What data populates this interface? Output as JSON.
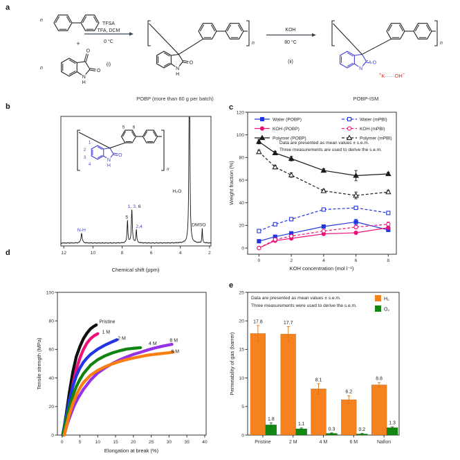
{
  "panels": {
    "a": "a",
    "b": "b",
    "c": "c",
    "d": "d",
    "e": "e"
  },
  "panel_a": {
    "n": "n",
    "plus": "+",
    "step1": {
      "reagent1": "TFSA",
      "reagent2": "TFA, DCM",
      "temp": "0 °C",
      "label": "(i)"
    },
    "step2": {
      "reagent1": "KOH",
      "temp": "80 °C",
      "label": "(ii)"
    },
    "atoms": {
      "o": "O",
      "n": "N",
      "h": "H"
    },
    "ion": {
      "plus": "+",
      "cation": "K",
      "dots": "·······",
      "anion": "OH",
      "minus": "−"
    },
    "colors": {
      "highlight_blue": "#4543d2",
      "ion_red": "#e42821",
      "bond_black": "#222222",
      "arrow": "#3c4650"
    }
  },
  "chart_data": [
    {
      "panel": "b",
      "type": "line",
      "subtype": "nmr-spectrum",
      "title": "POBP (more than 60 g per batch)",
      "xlabel": "Chemical shift (ppm)",
      "xlim": [
        12.2,
        1.9
      ],
      "x_ticks": [
        12,
        10,
        8,
        6,
        4,
        2
      ],
      "peaks": [
        {
          "ppm": 10.78,
          "rel_height": 0.075,
          "width": 0.05,
          "label": "N-H",
          "label_color": "#4543d2",
          "label_dx": 0
        },
        {
          "ppm": 7.63,
          "rel_height": 0.175,
          "width": 0.035,
          "label": "5",
          "label_color": "#222222",
          "label_dx": -1
        },
        {
          "ppm": 7.33,
          "rel_height": 0.26,
          "width": 0.04,
          "label": "1, 3,",
          "label2": " 6",
          "label_color": "#4543d2",
          "label_dx": 3.5
        },
        {
          "ppm": 7.02,
          "rel_height": 0.1,
          "width": 0.035,
          "label": "2,4",
          "label_color": "#4543d2",
          "label_dx": 4
        },
        {
          "ppm": 3.38,
          "rel_height": 2.0,
          "width": 0.03,
          "label": "H₂O",
          "label_color": "#222222",
          "label_dx": -18
        },
        {
          "ppm": 2.5,
          "rel_height": 0.115,
          "width": 0.025,
          "label": "DMSO",
          "label_color": "#222222",
          "label_dx": -5
        }
      ],
      "inset_ring_numbers": [
        "1",
        "2",
        "3",
        "4",
        "5",
        "6"
      ],
      "inset_n": "n"
    },
    {
      "panel": "c",
      "type": "line",
      "title": "POBP-ISM",
      "xlabel": "KOH concentration (mol l⁻¹)",
      "ylabel": "Weight fraction (%)",
      "xlim": [
        -0.7,
        8.5
      ],
      "ylim": [
        -5.5,
        120
      ],
      "x_ticks": [
        0,
        2,
        4,
        6,
        8
      ],
      "y_ticks": [
        0,
        20,
        40,
        60,
        80,
        100,
        120
      ],
      "x": [
        0,
        1,
        2,
        4,
        6,
        8
      ],
      "series": [
        {
          "name": "Water (POBP)",
          "color": "#2135e0",
          "marker": "square",
          "filled": true,
          "dashed": false,
          "values": [
            6,
            10,
            13,
            19,
            23,
            16
          ],
          "err": [
            0.8,
            1,
            1,
            1.2,
            2.5,
            1
          ]
        },
        {
          "name": "KOH (POBP)",
          "color": "#ee1178",
          "marker": "circle",
          "filled": true,
          "dashed": false,
          "values": [
            0,
            6.5,
            8.5,
            12.5,
            13.5,
            18
          ],
          "err": [
            0.5,
            0.8,
            0.8,
            1,
            1,
            1.2
          ]
        },
        {
          "name": "Polymer (POBP)",
          "color": "#1a1a1a",
          "marker": "triangle",
          "filled": true,
          "dashed": false,
          "values": [
            94,
            84,
            79,
            68.5,
            64,
            65.5
          ],
          "err": [
            2,
            1.5,
            2,
            1.5,
            4.5,
            1.5
          ]
        },
        {
          "name": "Water (mPBI)",
          "color": "#2135e0",
          "marker": "square",
          "filled": false,
          "dashed": true,
          "values": [
            15,
            21,
            25.5,
            34,
            35.5,
            31
          ],
          "err": [
            1,
            1,
            1.5,
            1.2,
            1.5,
            1
          ]
        },
        {
          "name": "KOH (mPBI)",
          "color": "#ee1178",
          "marker": "circle",
          "filled": false,
          "dashed": true,
          "values": [
            0,
            7.5,
            10.5,
            15,
            18.5,
            21
          ],
          "err": [
            0.5,
            0.8,
            1,
            1,
            1.5,
            2
          ]
        },
        {
          "name": "Polymer (mPBI)",
          "color": "#1a1a1a",
          "marker": "triangle",
          "filled": false,
          "dashed": true,
          "values": [
            85,
            71.5,
            64.5,
            50.5,
            46.5,
            49.5
          ],
          "err": [
            1.5,
            1.5,
            2,
            1.5,
            3,
            1.5
          ]
        }
      ],
      "legend_layout": [
        [
          0,
          3
        ],
        [
          1,
          4
        ],
        [
          2,
          5
        ]
      ],
      "annotation": [
        "Data are presented as mean values ± s.e.m.",
        "Three measurements are used to derive the s.e.m."
      ]
    },
    {
      "panel": "d",
      "type": "line",
      "xlabel": "Elongation at break (%)",
      "ylabel": "Tensile strength (MPa)",
      "xlim": [
        -1.3,
        40.4
      ],
      "ylim": [
        0,
        100
      ],
      "x_ticks": [
        0,
        5,
        10,
        15,
        20,
        25,
        30,
        35,
        40
      ],
      "y_ticks": [
        0,
        20,
        40,
        60,
        80,
        100
      ],
      "series": [
        {
          "name": "Pristine",
          "color": "#101010",
          "label_at": [
            10.4,
            78.5
          ],
          "points": [
            [
              0.2,
              0
            ],
            [
              0.7,
              7
            ],
            [
              1.2,
              15
            ],
            [
              2,
              29
            ],
            [
              3,
              44
            ],
            [
              4,
              55
            ],
            [
              5,
              62
            ],
            [
              6,
              67.5
            ],
            [
              7,
              71.5
            ],
            [
              8,
              74.5
            ],
            [
              9,
              76.3
            ],
            [
              9.6,
              77.2
            ]
          ]
        },
        {
          "name": "1 M",
          "color": "#ee1178",
          "label_at": [
            11.2,
            71
          ],
          "points": [
            [
              0.5,
              0
            ],
            [
              1,
              7
            ],
            [
              2,
              21
            ],
            [
              3,
              35
            ],
            [
              4,
              46
            ],
            [
              5,
              54
            ],
            [
              6,
              60
            ],
            [
              7,
              64.5
            ],
            [
              8,
              67.5
            ],
            [
              9,
              69.6
            ],
            [
              10,
              71
            ]
          ]
        },
        {
          "name": "2 M",
          "color": "#2135e0",
          "label_at": [
            15.6,
            66.8
          ],
          "points": [
            [
              0.2,
              0
            ],
            [
              1,
              11
            ],
            [
              2,
              24
            ],
            [
              3,
              34
            ],
            [
              4,
              41.5
            ],
            [
              5,
              47
            ],
            [
              6,
              51
            ],
            [
              7,
              54
            ],
            [
              8,
              56.5
            ],
            [
              10,
              60.2
            ],
            [
              12,
              63
            ],
            [
              14,
              65.3
            ],
            [
              15.4,
              66.8
            ]
          ]
        },
        {
          "name": "4 M",
          "color": "#108312",
          "label_at": [
            24.3,
            63
          ],
          "points": [
            [
              0.3,
              0
            ],
            [
              1,
              9
            ],
            [
              2,
              19
            ],
            [
              3,
              27.5
            ],
            [
              4,
              34
            ],
            [
              5,
              39
            ],
            [
              6,
              43
            ],
            [
              8,
              49
            ],
            [
              10,
              52.8
            ],
            [
              12,
              55.5
            ],
            [
              14,
              57.5
            ],
            [
              16,
              59
            ],
            [
              18,
              60.2
            ],
            [
              20,
              60.8
            ],
            [
              22,
              61.2
            ]
          ]
        },
        {
          "name": "8 M",
          "color": "#9632e6",
          "label_at": [
            30.2,
            65.2
          ],
          "points": [
            [
              0.6,
              0
            ],
            [
              1.5,
              8
            ],
            [
              2.5,
              15
            ],
            [
              3.5,
              21
            ],
            [
              4.5,
              26
            ],
            [
              6,
              32
            ],
            [
              8,
              38.5
            ],
            [
              10,
              43.5
            ],
            [
              12,
              47
            ],
            [
              14,
              50
            ],
            [
              16,
              52.5
            ],
            [
              18,
              54.6
            ],
            [
              20,
              56.5
            ],
            [
              22,
              58
            ],
            [
              24,
              59.6
            ],
            [
              26,
              61
            ],
            [
              28,
              62.2
            ],
            [
              30,
              63.2
            ],
            [
              30.8,
              63.6
            ]
          ]
        },
        {
          "name": "6 M",
          "color": "#fa7e10",
          "label_at": [
            30.6,
            57.5
          ],
          "points": [
            [
              0.6,
              0
            ],
            [
              1.3,
              7
            ],
            [
              2,
              14
            ],
            [
              3,
              22
            ],
            [
              4,
              28
            ],
            [
              5,
              33
            ],
            [
              6,
              36.8
            ],
            [
              8,
              42
            ],
            [
              10,
              45.3
            ],
            [
              12,
              47.8
            ],
            [
              14,
              49.8
            ],
            [
              16,
              51.4
            ],
            [
              18,
              52.8
            ],
            [
              20,
              54
            ],
            [
              22,
              55
            ],
            [
              24,
              55.9
            ],
            [
              26,
              56.6
            ],
            [
              28,
              57.2
            ],
            [
              30,
              57.7
            ],
            [
              31.2,
              58.2
            ]
          ]
        }
      ]
    },
    {
      "panel": "e",
      "type": "bar",
      "ylabel": "Permeability of gas (barrer)",
      "categories": [
        "Pristine",
        "2 M",
        "4 M",
        "6 M",
        "Nafion"
      ],
      "ylim": [
        0,
        25
      ],
      "y_ticks": [
        0,
        5,
        10,
        15,
        20,
        25
      ],
      "series": [
        {
          "name": "H₂",
          "color": "#f5821f",
          "err_color": "#e07414",
          "values": [
            17.8,
            17.7,
            8.1,
            6.2,
            8.8
          ],
          "err": [
            1.4,
            1.3,
            0.9,
            0.7,
            0.4
          ],
          "labels": [
            "17.8",
            "17.7",
            "8.1",
            "6.2",
            "8.8"
          ]
        },
        {
          "name": "O₂",
          "color": "#128712",
          "err_color": "#0e6e0e",
          "values": [
            1.8,
            1.1,
            0.3,
            0.2,
            1.3
          ],
          "err": [
            0.35,
            0.15,
            0.08,
            0.08,
            0.15
          ],
          "labels": [
            "1.8",
            "1.1",
            "0.3",
            "0.2",
            "1.3"
          ]
        }
      ],
      "annotation": [
        "Data are presented as mean values ± s.e.m.",
        "Three measurements were used to derive the s.e.m."
      ]
    }
  ]
}
